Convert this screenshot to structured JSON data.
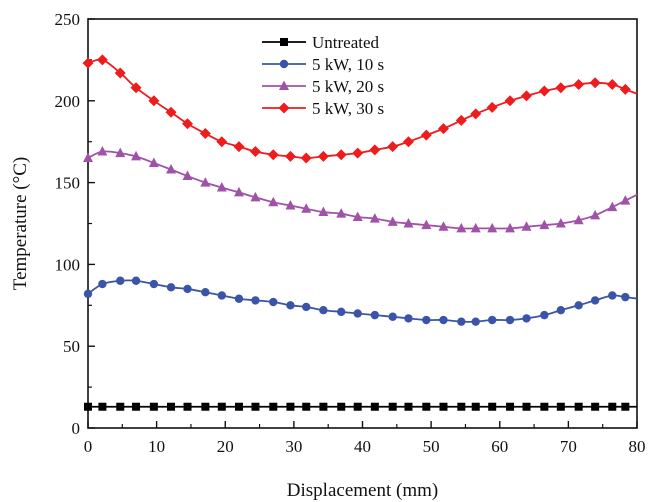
{
  "chart_data": {
    "type": "line",
    "title": "",
    "xlabel": "Displacement  (mm)",
    "ylabel": "Temperature (°C)",
    "xlim": [
      0,
      80
    ],
    "ylim": [
      0,
      250
    ],
    "xticks": [
      0,
      10,
      20,
      30,
      40,
      50,
      60,
      70,
      80
    ],
    "yticks": [
      0,
      50,
      100,
      150,
      200,
      250
    ],
    "grid": false,
    "legend_position": "top-center",
    "x": [
      0,
      2.1,
      4.7,
      7.0,
      9.6,
      12.1,
      14.5,
      17.1,
      19.5,
      22.0,
      24.4,
      27.0,
      29.5,
      31.8,
      34.3,
      36.9,
      39.3,
      41.8,
      44.4,
      46.7,
      49.3,
      51.8,
      54.4,
      56.5,
      58.9,
      61.5,
      63.9,
      66.5,
      68.9,
      71.5,
      73.9,
      76.4,
      78.3
    ],
    "series": [
      {
        "name": "Untreated",
        "color": "#000000",
        "marker": "square",
        "values": [
          13,
          13,
          13,
          13,
          13,
          13,
          13,
          13,
          13,
          13,
          13,
          13,
          13,
          13,
          13,
          13,
          13,
          13,
          13,
          13,
          13,
          13,
          13,
          13,
          13,
          13,
          13,
          13,
          13,
          13,
          13,
          13,
          13
        ]
      },
      {
        "name": "5 kW, 10 s",
        "color": "#3a55a8",
        "marker": "circle",
        "values": [
          82,
          88,
          90,
          90,
          88,
          86,
          85,
          83,
          81,
          79,
          78,
          77,
          75,
          74,
          72,
          71,
          70,
          69,
          68,
          67,
          66,
          66,
          65,
          65,
          66,
          66,
          67,
          69,
          72,
          75,
          78,
          81,
          80
        ]
      },
      {
        "name": "5 kW, 20 s",
        "color": "#a052a8",
        "marker": "triangle",
        "values": [
          165,
          169,
          168,
          166,
          162,
          158,
          154,
          150,
          147,
          144,
          141,
          138,
          136,
          134,
          132,
          131,
          129,
          128,
          126,
          125,
          124,
          123,
          122,
          122,
          122,
          122,
          123,
          124,
          125,
          127,
          130,
          135,
          139
        ]
      },
      {
        "name": "5 kW, 30 s",
        "color": "#ee1c1c",
        "marker": "diamond",
        "values": [
          223,
          225,
          217,
          208,
          200,
          193,
          186,
          180,
          175,
          172,
          169,
          167,
          166,
          165,
          166,
          167,
          168,
          170,
          172,
          175,
          179,
          183,
          188,
          192,
          196,
          200,
          203,
          206,
          208,
          210,
          211,
          210,
          207
        ]
      }
    ]
  }
}
